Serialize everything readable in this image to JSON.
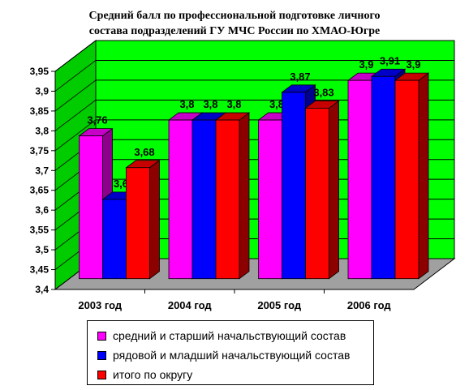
{
  "chart_data": {
    "type": "bar",
    "title_line1": "Средний балл по профессиональной подготовке личного",
    "title_line2": "состава подразделений ГУ МЧС России по ХМАО-Югре",
    "categories": [
      "2003 год",
      "2004 год",
      "2005 год",
      "2006 год"
    ],
    "series": [
      {
        "name": "средний и старший начальствующий состав",
        "color": "#FF00FF",
        "values": [
          3.76,
          3.8,
          3.8,
          3.9
        ],
        "labels": [
          "3,76",
          "3,8",
          "3,8",
          "3,9"
        ]
      },
      {
        "name": "рядовой и младший начальствующий состав",
        "color": "#0000FF",
        "values": [
          3.6,
          3.8,
          3.87,
          3.91
        ],
        "labels": [
          "3,6",
          "3,8",
          "3,87",
          "3,91"
        ]
      },
      {
        "name": "итого по округу",
        "color": "#FF0000",
        "values": [
          3.68,
          3.8,
          3.83,
          3.9
        ],
        "labels": [
          "3,68",
          "3,8",
          "3,83",
          "3,9"
        ]
      }
    ],
    "ylim": [
      3.4,
      3.95
    ],
    "yticks": [
      "3,4",
      "3,45",
      "3,5",
      "3,55",
      "3,6",
      "3,65",
      "3,7",
      "3,75",
      "3,8",
      "3,85",
      "3,9",
      "3,95"
    ],
    "grid": true,
    "wall_color": "#00FF00",
    "floor_color": "#A0A0A0",
    "legend_position": "bottom"
  }
}
